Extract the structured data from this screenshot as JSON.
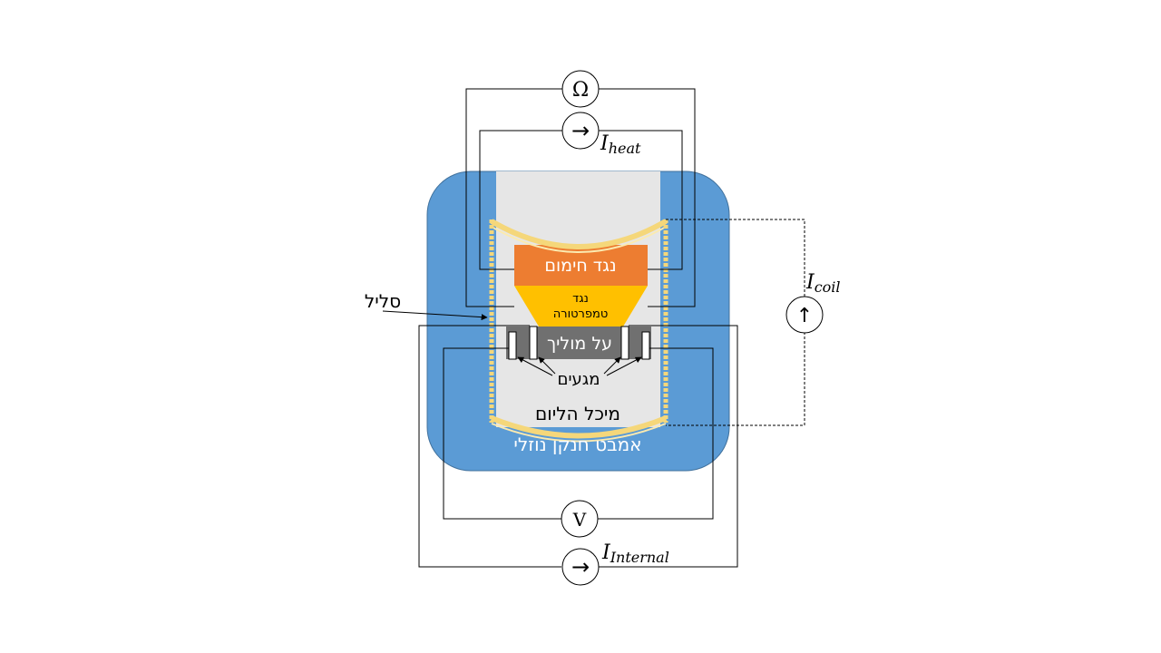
{
  "labels": {
    "heater": "נגד חימום",
    "temp_sensor_line1": "נגד",
    "temp_sensor_line2": "טמפרטורה",
    "superconductor": "על מוליך",
    "contacts": "מגעים",
    "helium_container": "מיכל הליום",
    "nitrogen_bath": "אמבט חנקן נוזלי",
    "coil": "סליל"
  },
  "meters": {
    "ohmmeter": "Ω",
    "heat_source": "→",
    "coil_source": "↑",
    "voltmeter": "V",
    "internal_source": "→"
  },
  "currents": {
    "heat": {
      "symbol": "I",
      "subscript": "heat"
    },
    "coil": {
      "symbol": "I",
      "subscript": "coil"
    },
    "internal": {
      "symbol": "I",
      "subscript": "Internal"
    }
  },
  "colors": {
    "nitrogen": "#5b9bd5",
    "helium": "#e6e6e6",
    "heater": "#ed7d31",
    "temp_sensor": "#ffc000",
    "superconductor": "#707070",
    "coil": "#f5d77a",
    "wire": "#000000"
  }
}
